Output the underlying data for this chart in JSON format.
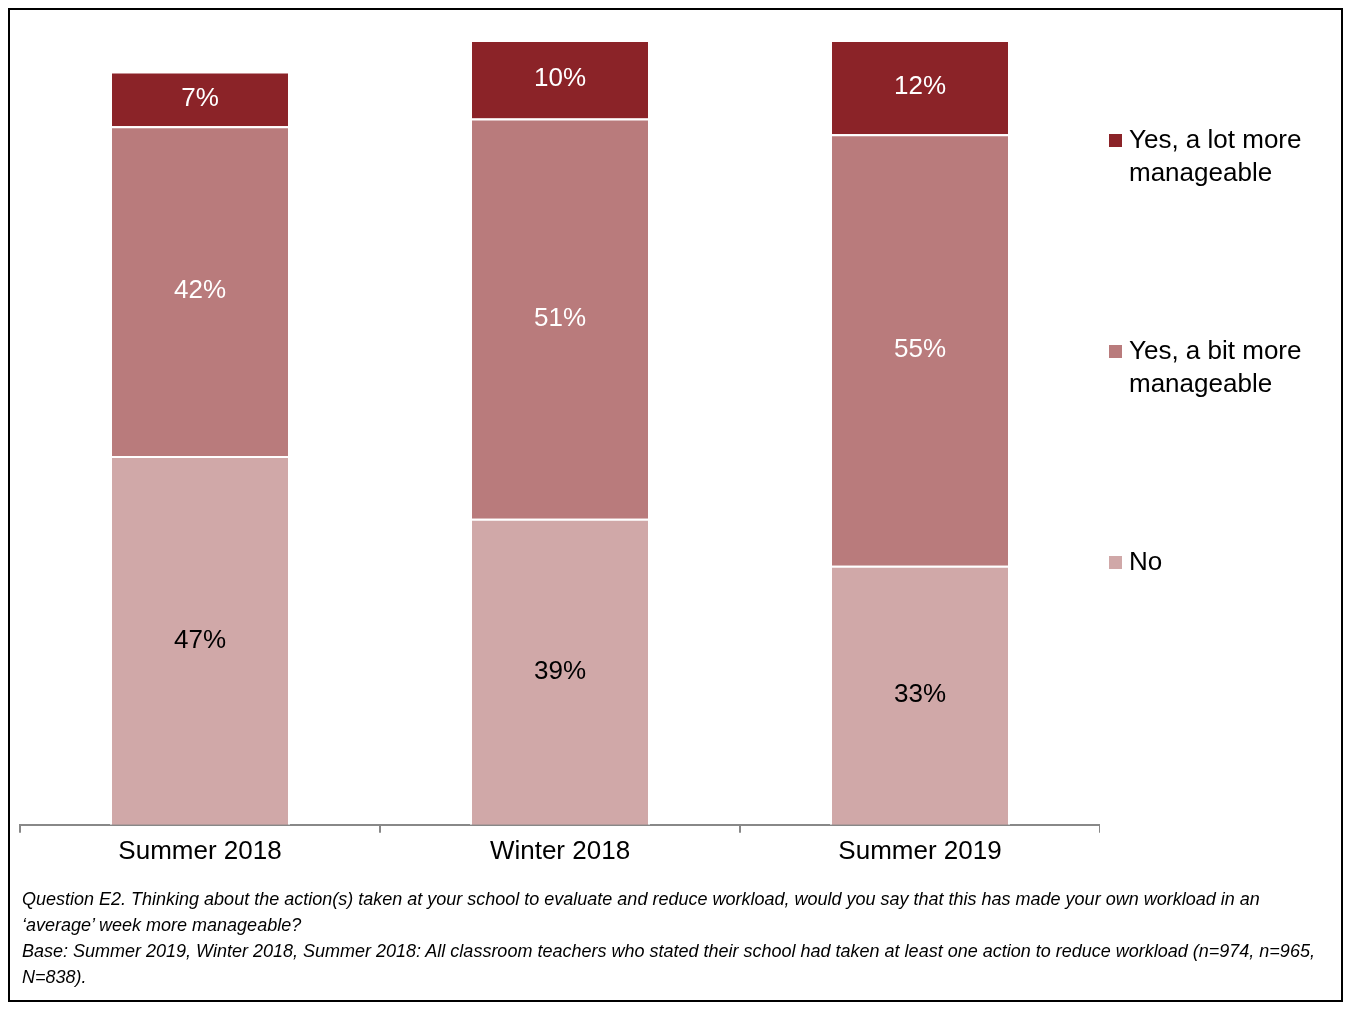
{
  "chart_data": {
    "type": "bar",
    "stacked": true,
    "legend": "right",
    "grid": false,
    "categories": [
      "Summer 2018",
      "Winter 2018",
      "Summer 2019"
    ],
    "series": [
      {
        "name": "No",
        "color": "#d0a8a8",
        "values": [
          47,
          39,
          33
        ],
        "value_labels": [
          "47%",
          "39%",
          "33%"
        ]
      },
      {
        "name": "Yes, a bit more manageable",
        "color": "#b97b7c",
        "values": [
          42,
          51,
          55
        ],
        "value_labels": [
          "42%",
          "51%",
          "55%"
        ]
      },
      {
        "name": "Yes, a lot more manageable",
        "color": "#8b2328",
        "values": [
          7,
          10,
          12
        ],
        "value_labels": [
          "7%",
          "10%",
          "12%"
        ]
      }
    ],
    "annotations": [
      "Question E2. Thinking about the action(s) taken at your school to evaluate and reduce workload, would you say that this has made your own workload in an ‘average’ week more manageable?",
      "Base: Summer 2019, Winter 2018, Summer 2018: All classroom teachers who stated their school had taken at least one action to reduce workload (n=974, n=965, N=838)."
    ]
  }
}
